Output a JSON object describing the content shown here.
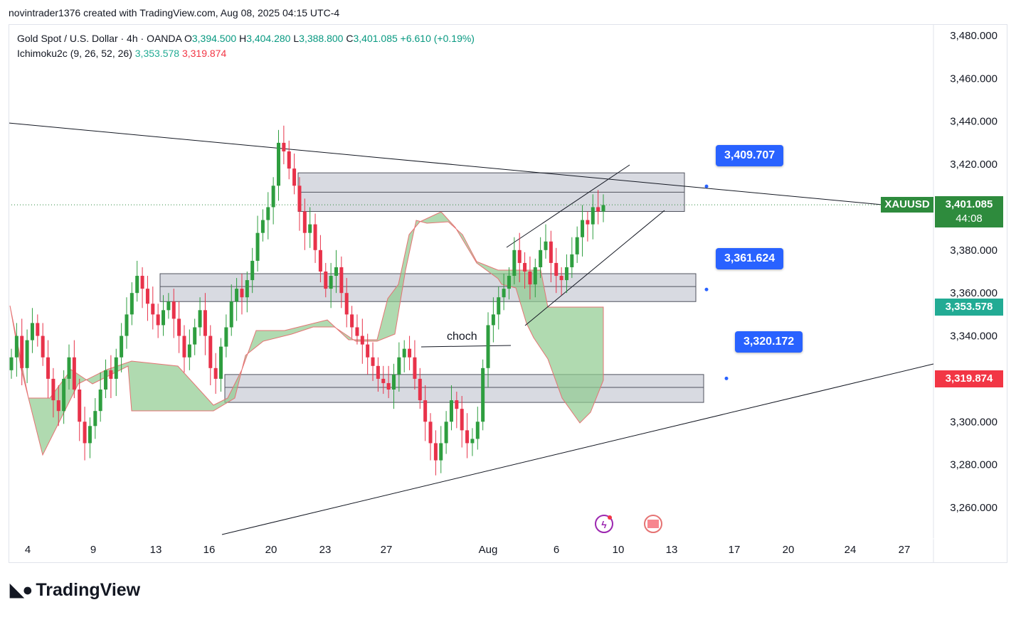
{
  "header": {
    "author_line": "novintrader1376 created with TradingView.com, Aug 08, 2025 04:15 UTC-4"
  },
  "legend": {
    "symbol": "Gold Spot / U.S. Dollar · 4h · OANDA",
    "o_label": "O",
    "o_value": "3,394.500",
    "h_label": "H",
    "h_value": "3,404.280",
    "l_label": "L",
    "l_value": "3,388.800",
    "c_label": "C",
    "c_value": "3,401.085",
    "change": "+6.610 (+0.19%)",
    "indicator": "Ichimoku2c (9, 26, 52, 26)",
    "ind_value1": "3,353.578",
    "ind_value2": "3,319.874"
  },
  "brand": "TradingView",
  "colors": {
    "up": "#089981",
    "down": "#f23645",
    "candle_up": "#2e9e3f",
    "candle_down": "#e8324a",
    "cloud": "#8fcb8f",
    "zone": "#d1d4dc",
    "callout": "#2962ff",
    "last_price": "#2e8b3d"
  },
  "chart_data": {
    "type": "candlestick",
    "y_axis_ticks": [
      "3,480.000",
      "3,460.000",
      "3,440.000",
      "3,420.000",
      "3,400.000",
      "3,380.000",
      "3,360.000",
      "3,340.000",
      "3,320.000",
      "3,300.000",
      "3,280.000",
      "3,260.000"
    ],
    "y_axis_values": [
      3480,
      3460,
      3440,
      3420,
      3400,
      3380,
      3360,
      3340,
      3320,
      3300,
      3280,
      3260
    ],
    "ylim": [
      3250,
      3490
    ],
    "x_axis_ticks": [
      "4",
      "9",
      "13",
      "16",
      "20",
      "23",
      "27",
      "Aug",
      "6",
      "10",
      "13",
      "17",
      "20",
      "24",
      "27"
    ],
    "last_price": {
      "symbol": "XAUUSD",
      "value": "3,401.085",
      "countdown": "44:08",
      "y": 3401.085
    },
    "ichimoku_labels": [
      {
        "value": "3,353.578",
        "y": 3353.578,
        "color": "#22ab94"
      },
      {
        "value": "3,319.874",
        "y": 3319.874,
        "color": "#f23645"
      }
    ],
    "callouts": [
      {
        "value": "3,409.707",
        "y": 3409.707
      },
      {
        "value": "3,361.624",
        "y": 3361.624
      },
      {
        "value": "3,320.172",
        "y": 3320.172
      }
    ],
    "zones": [
      {
        "top": 3416,
        "bottom": 3398,
        "mid": 3407
      },
      {
        "top": 3369,
        "bottom": 3356,
        "mid": 3363
      },
      {
        "top": 3322,
        "bottom": 3309,
        "mid": 3316
      }
    ],
    "annotation": "choch",
    "closes": [
      3330,
      3340,
      3325,
      3338,
      3346,
      3340,
      3330,
      3320,
      3310,
      3305,
      3320,
      3330,
      3315,
      3300,
      3290,
      3298,
      3305,
      3315,
      3324,
      3320,
      3330,
      3340,
      3350,
      3360,
      3368,
      3362,
      3355,
      3350,
      3345,
      3352,
      3356,
      3348,
      3340,
      3330,
      3336,
      3344,
      3352,
      3340,
      3325,
      3320,
      3335,
      3344,
      3356,
      3362,
      3358,
      3366,
      3375,
      3388,
      3394,
      3400,
      3410,
      3430,
      3426,
      3418,
      3410,
      3398,
      3388,
      3392,
      3380,
      3370,
      3362,
      3368,
      3372,
      3360,
      3350,
      3344,
      3340,
      3336,
      3330,
      3326,
      3320,
      3318,
      3315,
      3322,
      3330,
      3334,
      3330,
      3320,
      3310,
      3300,
      3290,
      3282,
      3290,
      3300,
      3310,
      3306,
      3296,
      3290,
      3292,
      3300,
      3325,
      3345,
      3350,
      3358,
      3362,
      3368,
      3380,
      3374,
      3370,
      3364,
      3372,
      3380,
      3384,
      3374,
      3368,
      3366,
      3372,
      3378,
      3386,
      3394,
      3392,
      3400,
      3398,
      3401
    ]
  }
}
